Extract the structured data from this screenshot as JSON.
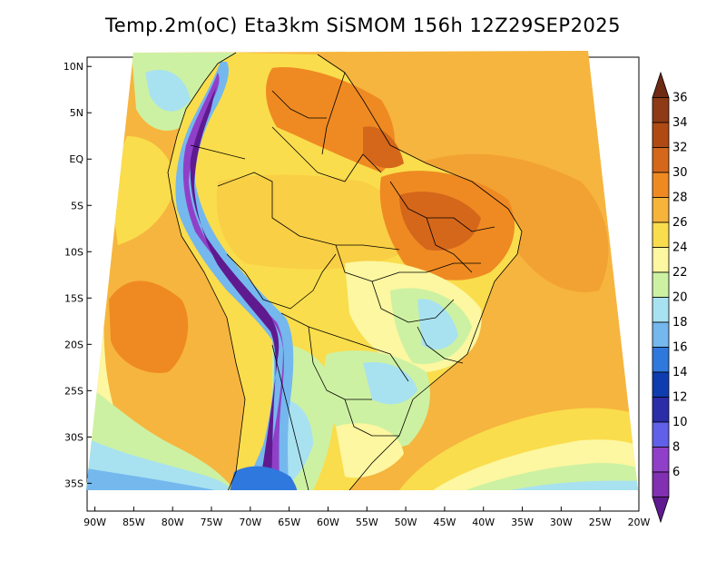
{
  "title": "Temp.2m(oC) Eta3km SiSMOM 156h 12Z29SEP2025",
  "map": {
    "lat_labels": [
      "10N",
      "5N",
      "EQ",
      "5S",
      "10S",
      "15S",
      "20S",
      "25S",
      "30S",
      "35S"
    ],
    "lon_labels": [
      "90W",
      "85W",
      "80W",
      "75W",
      "70W",
      "65W",
      "60W",
      "55W",
      "50W",
      "45W",
      "40W",
      "35W",
      "30W",
      "25W",
      "20W"
    ],
    "lat_range": [
      -38,
      11
    ],
    "lon_range": [
      -91,
      -20
    ],
    "field": "2 m temperature",
    "units": "oC"
  },
  "colorbar": {
    "labels": [
      "36",
      "34",
      "32",
      "30",
      "28",
      "26",
      "24",
      "22",
      "20",
      "18",
      "16",
      "14",
      "12",
      "10",
      "8",
      "6"
    ],
    "colors": [
      "#6e2a12",
      "#8e3a16",
      "#b04a14",
      "#d5671a",
      "#ef8a22",
      "#f7b43a",
      "#fadd4c",
      "#fcf7a0",
      "#cdf1a2",
      "#a8e2f0",
      "#74b8ee",
      "#2f78dd",
      "#0f3db0",
      "#2a2ca8",
      "#6060e8",
      "#9040c8",
      "#8030b0",
      "#601a90"
    ]
  }
}
